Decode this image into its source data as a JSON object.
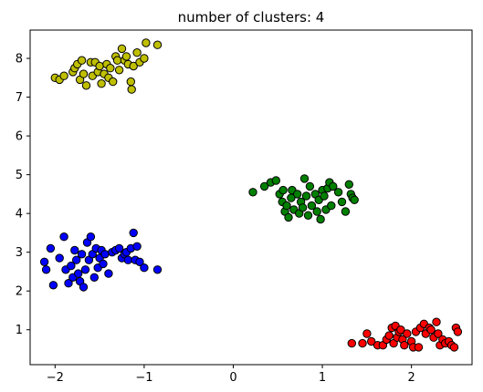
{
  "chart_data": {
    "type": "scatter",
    "title": "number of clusters: 4",
    "xlabel": "",
    "ylabel": "",
    "xlim": [
      -2.28,
      2.68
    ],
    "ylim": [
      0.1,
      8.73
    ],
    "x_ticks": [
      -2,
      -1,
      0,
      1,
      2
    ],
    "y_ticks": [
      1,
      2,
      3,
      4,
      5,
      6,
      7,
      8
    ],
    "grid": false,
    "marker_edge_color": "#000000",
    "series": [
      {
        "color": "#bfbf00",
        "points": [
          [
            -2.0,
            7.5
          ],
          [
            -1.95,
            7.45
          ],
          [
            -1.9,
            7.55
          ],
          [
            -1.8,
            7.65
          ],
          [
            -1.78,
            7.75
          ],
          [
            -1.75,
            7.85
          ],
          [
            -1.72,
            7.45
          ],
          [
            -1.7,
            7.95
          ],
          [
            -1.68,
            7.6
          ],
          [
            -1.65,
            7.3
          ],
          [
            -1.6,
            7.9
          ],
          [
            -1.58,
            7.55
          ],
          [
            -1.55,
            7.9
          ],
          [
            -1.52,
            7.65
          ],
          [
            -1.5,
            7.8
          ],
          [
            -1.48,
            7.35
          ],
          [
            -1.45,
            7.6
          ],
          [
            -1.42,
            7.85
          ],
          [
            -1.4,
            7.5
          ],
          [
            -1.38,
            7.75
          ],
          [
            -1.35,
            7.4
          ],
          [
            -1.32,
            8.05
          ],
          [
            -1.3,
            7.95
          ],
          [
            -1.28,
            7.7
          ],
          [
            -1.25,
            8.25
          ],
          [
            -1.22,
            7.95
          ],
          [
            -1.2,
            8.05
          ],
          [
            -1.18,
            7.85
          ],
          [
            -1.15,
            7.4
          ],
          [
            -1.14,
            7.2
          ],
          [
            -1.12,
            7.8
          ],
          [
            -1.08,
            8.15
          ],
          [
            -1.05,
            7.9
          ],
          [
            -1.0,
            8.0
          ],
          [
            -0.98,
            8.4
          ],
          [
            -0.85,
            8.35
          ]
        ]
      },
      {
        "color": "#008000",
        "points": [
          [
            0.22,
            4.55
          ],
          [
            0.35,
            4.7
          ],
          [
            0.42,
            4.8
          ],
          [
            0.48,
            4.85
          ],
          [
            0.52,
            4.5
          ],
          [
            0.55,
            4.3
          ],
          [
            0.56,
            4.6
          ],
          [
            0.58,
            4.05
          ],
          [
            0.6,
            4.2
          ],
          [
            0.62,
            3.9
          ],
          [
            0.65,
            4.4
          ],
          [
            0.66,
            4.6
          ],
          [
            0.68,
            4.1
          ],
          [
            0.72,
            4.5
          ],
          [
            0.74,
            4.0
          ],
          [
            0.76,
            4.3
          ],
          [
            0.78,
            4.15
          ],
          [
            0.8,
            4.9
          ],
          [
            0.82,
            4.45
          ],
          [
            0.84,
            3.95
          ],
          [
            0.86,
            4.7
          ],
          [
            0.88,
            4.2
          ],
          [
            0.92,
            4.5
          ],
          [
            0.94,
            4.05
          ],
          [
            0.96,
            4.35
          ],
          [
            0.98,
            3.85
          ],
          [
            1.0,
            4.6
          ],
          [
            1.02,
            4.45
          ],
          [
            1.04,
            4.1
          ],
          [
            1.06,
            4.65
          ],
          [
            1.08,
            4.8
          ],
          [
            1.1,
            4.2
          ],
          [
            1.12,
            4.7
          ],
          [
            1.18,
            4.55
          ],
          [
            1.22,
            4.3
          ],
          [
            1.26,
            4.05
          ],
          [
            1.3,
            4.75
          ],
          [
            1.32,
            4.5
          ],
          [
            1.34,
            4.4
          ],
          [
            1.36,
            4.35
          ]
        ]
      },
      {
        "color": "#0000ff",
        "points": [
          [
            -2.12,
            2.75
          ],
          [
            -2.1,
            2.55
          ],
          [
            -2.05,
            3.1
          ],
          [
            -2.02,
            2.15
          ],
          [
            -1.95,
            2.85
          ],
          [
            -1.9,
            3.4
          ],
          [
            -1.88,
            2.55
          ],
          [
            -1.85,
            2.2
          ],
          [
            -1.82,
            2.65
          ],
          [
            -1.8,
            2.35
          ],
          [
            -1.78,
            3.05
          ],
          [
            -1.76,
            2.8
          ],
          [
            -1.74,
            2.45
          ],
          [
            -1.72,
            2.25
          ],
          [
            -1.7,
            2.95
          ],
          [
            -1.68,
            2.1
          ],
          [
            -1.66,
            2.55
          ],
          [
            -1.64,
            3.25
          ],
          [
            -1.62,
            2.8
          ],
          [
            -1.6,
            3.4
          ],
          [
            -1.58,
            2.95
          ],
          [
            -1.56,
            2.35
          ],
          [
            -1.54,
            3.1
          ],
          [
            -1.52,
            2.6
          ],
          [
            -1.5,
            2.85
          ],
          [
            -1.48,
            3.05
          ],
          [
            -1.46,
            2.7
          ],
          [
            -1.44,
            2.95
          ],
          [
            -1.4,
            2.45
          ],
          [
            -1.36,
            3.0
          ],
          [
            -1.32,
            3.05
          ],
          [
            -1.28,
            3.1
          ],
          [
            -1.25,
            2.85
          ],
          [
            -1.22,
            2.95
          ],
          [
            -1.2,
            3.0
          ],
          [
            -1.18,
            2.8
          ],
          [
            -1.15,
            3.1
          ],
          [
            -1.12,
            3.5
          ],
          [
            -1.1,
            2.8
          ],
          [
            -1.08,
            3.15
          ],
          [
            -1.05,
            2.75
          ],
          [
            -1.0,
            2.6
          ],
          [
            -0.85,
            2.55
          ]
        ]
      },
      {
        "color": "#ff0000",
        "points": [
          [
            1.33,
            0.65
          ],
          [
            1.45,
            0.65
          ],
          [
            1.5,
            0.9
          ],
          [
            1.55,
            0.7
          ],
          [
            1.62,
            0.6
          ],
          [
            1.68,
            0.6
          ],
          [
            1.72,
            0.75
          ],
          [
            1.75,
            0.85
          ],
          [
            1.78,
            1.05
          ],
          [
            1.8,
            0.65
          ],
          [
            1.82,
            1.1
          ],
          [
            1.84,
            0.8
          ],
          [
            1.86,
            0.95
          ],
          [
            1.88,
            1.0
          ],
          [
            1.9,
            0.75
          ],
          [
            1.92,
            0.6
          ],
          [
            1.95,
            0.9
          ],
          [
            2.0,
            0.7
          ],
          [
            2.02,
            0.55
          ],
          [
            2.05,
            0.95
          ],
          [
            2.08,
            0.55
          ],
          [
            2.1,
            1.05
          ],
          [
            2.14,
            1.15
          ],
          [
            2.16,
            0.9
          ],
          [
            2.2,
            1.05
          ],
          [
            2.22,
            1.0
          ],
          [
            2.25,
            0.8
          ],
          [
            2.28,
            1.2
          ],
          [
            2.3,
            0.9
          ],
          [
            2.32,
            0.6
          ],
          [
            2.35,
            0.75
          ],
          [
            2.38,
            0.65
          ],
          [
            2.42,
            0.7
          ],
          [
            2.45,
            0.6
          ],
          [
            2.48,
            0.55
          ],
          [
            2.5,
            1.05
          ],
          [
            2.52,
            0.95
          ]
        ]
      }
    ]
  }
}
